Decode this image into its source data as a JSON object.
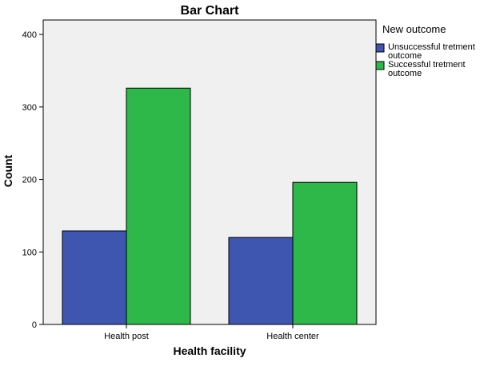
{
  "chart_data": {
    "type": "bar",
    "title": "Bar Chart",
    "xlabel": "Health facility",
    "ylabel": "Count",
    "categories": [
      "Health post",
      "Health center"
    ],
    "series": [
      {
        "name": "Unsuccessful tretment outcome",
        "legend_lines": [
          "Unsuccessful tretment",
          "outcome"
        ],
        "color": "#3f56b0",
        "values": [
          129,
          120
        ]
      },
      {
        "name": "Successful tretment outcome",
        "legend_lines": [
          "Successful tretment",
          "outcome"
        ],
        "color": "#2eb84a",
        "values": [
          326,
          196
        ]
      }
    ],
    "ylim": [
      0,
      420
    ],
    "yticks": [
      0,
      100,
      200,
      300,
      400
    ],
    "legend": {
      "title": "New outcome",
      "placement": "right"
    },
    "plot_background": "#f0f0f0",
    "grid": false
  }
}
